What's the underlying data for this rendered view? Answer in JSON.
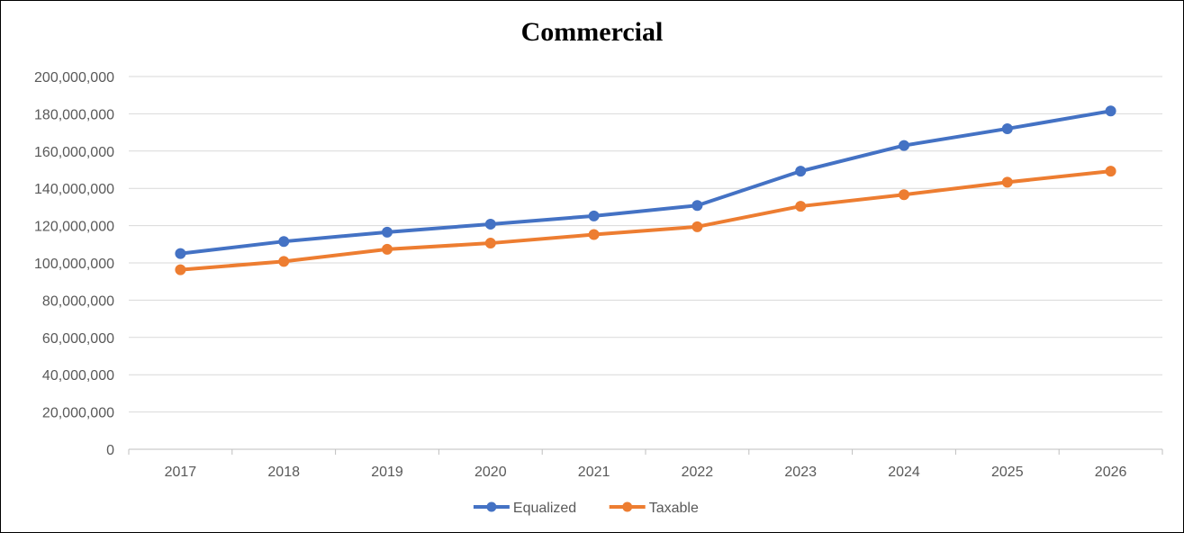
{
  "chart_data": {
    "type": "line",
    "title": "Commercial",
    "xlabel": "",
    "ylabel": "",
    "categories": [
      "2017",
      "2018",
      "2019",
      "2020",
      "2021",
      "2022",
      "2023",
      "2024",
      "2025",
      "2026"
    ],
    "series": [
      {
        "name": "Equalized",
        "color": "#4472C4",
        "values": [
          105000000,
          111500000,
          116500000,
          120800000,
          125200000,
          130800000,
          149200000,
          163000000,
          172000000,
          181500000
        ]
      },
      {
        "name": "Taxable",
        "color": "#ED7D31",
        "values": [
          96300000,
          100800000,
          107300000,
          110600000,
          115200000,
          119400000,
          130400000,
          136600000,
          143300000,
          149200000
        ]
      }
    ],
    "ylim": [
      0,
      200000000
    ],
    "yticks": [
      0,
      20000000,
      40000000,
      60000000,
      80000000,
      100000000,
      120000000,
      140000000,
      160000000,
      180000000,
      200000000
    ],
    "ytick_labels": [
      "0",
      "20,000,000",
      "40,000,000",
      "60,000,000",
      "80,000,000",
      "100,000,000",
      "120,000,000",
      "140,000,000",
      "160,000,000",
      "180,000,000",
      "200,000,000"
    ],
    "grid": true,
    "legend_position": "bottom",
    "gridline_color": "#D9D9D9",
    "axis_color": "#BFBFBF",
    "text_color": "#595959"
  }
}
